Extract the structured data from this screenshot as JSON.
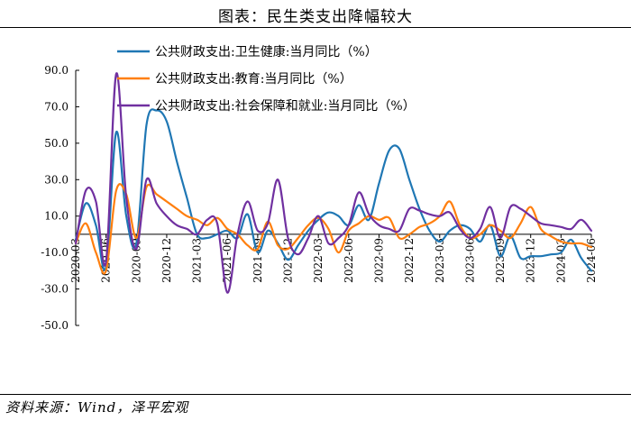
{
  "header": {
    "title": "图表：民生类支出降幅较大"
  },
  "footer": {
    "source": "资料来源：Wind，泽平宏观"
  },
  "chart_data": {
    "type": "line",
    "title": "图表：民生类支出降幅较大",
    "xlabel": "",
    "ylabel": "",
    "ylim": [
      -50,
      90
    ],
    "yticks": [
      -50,
      -30,
      -10,
      10,
      30,
      50,
      70,
      90
    ],
    "ytick_labels": [
      "-50.0",
      "-30.0",
      "-10.0",
      "10.0",
      "30.0",
      "50.0",
      "70.0",
      "90.0"
    ],
    "xtick_labels": [
      "2020-03",
      "2020-06",
      "2020-09",
      "2020-12",
      "2021-03",
      "2021-06",
      "2021-09",
      "2021-12",
      "2022-03",
      "2022-06",
      "2022-09",
      "2022-12",
      "2023-03",
      "2023-06",
      "2023-09",
      "2023-12",
      "2024-03",
      "2024-06"
    ],
    "legend_position": "top-left",
    "grid": false,
    "x": [
      "2020-03",
      "2020-04",
      "2020-05",
      "2020-06",
      "2020-07",
      "2020-08",
      "2020-09",
      "2020-10",
      "2020-11",
      "2020-12",
      "2021-01",
      "2021-02",
      "2021-03",
      "2021-04",
      "2021-05",
      "2021-06",
      "2021-07",
      "2021-08",
      "2021-09",
      "2021-10",
      "2021-11",
      "2021-12",
      "2022-01",
      "2022-02",
      "2022-03",
      "2022-04",
      "2022-05",
      "2022-06",
      "2022-07",
      "2022-08",
      "2022-09",
      "2022-10",
      "2022-11",
      "2022-12",
      "2023-01",
      "2023-02",
      "2023-03",
      "2023-04",
      "2023-05",
      "2023-06",
      "2023-07",
      "2023-08",
      "2023-09",
      "2023-10",
      "2023-11",
      "2023-12",
      "2024-01",
      "2024-02",
      "2024-03",
      "2024-04",
      "2024-05",
      "2024-06"
    ],
    "series": [
      {
        "name": "公共财政支出:卫生健康:当月同比（%）",
        "color": "#1f77b4",
        "values": [
          -3,
          17,
          5,
          -18,
          56,
          10,
          -5,
          60,
          68,
          62,
          40,
          20,
          0,
          -2,
          0,
          2,
          -2,
          11,
          -10,
          2,
          -5,
          -14,
          -6,
          2,
          8,
          12,
          10,
          5,
          16,
          8,
          28,
          46,
          47,
          30,
          14,
          2,
          -4,
          2,
          5,
          3,
          -4,
          5,
          -12,
          -1,
          -13,
          -12,
          -12,
          -11,
          -10,
          -3,
          -13,
          -20
        ]
      },
      {
        "name": "公共财政支出:教育:当月同比（%）",
        "color": "#ff7f0e",
        "values": [
          -5,
          6,
          -10,
          -20,
          24,
          22,
          -2,
          26,
          22,
          18,
          14,
          10,
          8,
          5,
          9,
          3,
          0,
          -6,
          -8,
          7,
          -6,
          -8,
          -2,
          5,
          9,
          3,
          -10,
          2,
          6,
          10,
          8,
          9,
          -2,
          0,
          4,
          6,
          10,
          18,
          5,
          -2,
          0,
          5,
          2,
          -2,
          6,
          15,
          3,
          -1,
          -4,
          -5,
          -5,
          -7
        ]
      },
      {
        "name": "公共财政支出:社会保障和就业:当月同比（%）",
        "color": "#7030a0",
        "values": [
          -5,
          24,
          18,
          -15,
          88,
          20,
          -8,
          30,
          17,
          10,
          5,
          3,
          0,
          8,
          6,
          -32,
          0,
          18,
          2,
          6,
          30,
          -2,
          -11,
          -2,
          10,
          -5,
          -2,
          5,
          23,
          11,
          5,
          3,
          2,
          14,
          13,
          11,
          10,
          12,
          3,
          -2,
          3,
          15,
          -2,
          15,
          14,
          10,
          6,
          5,
          4,
          3,
          8,
          2
        ]
      }
    ]
  }
}
